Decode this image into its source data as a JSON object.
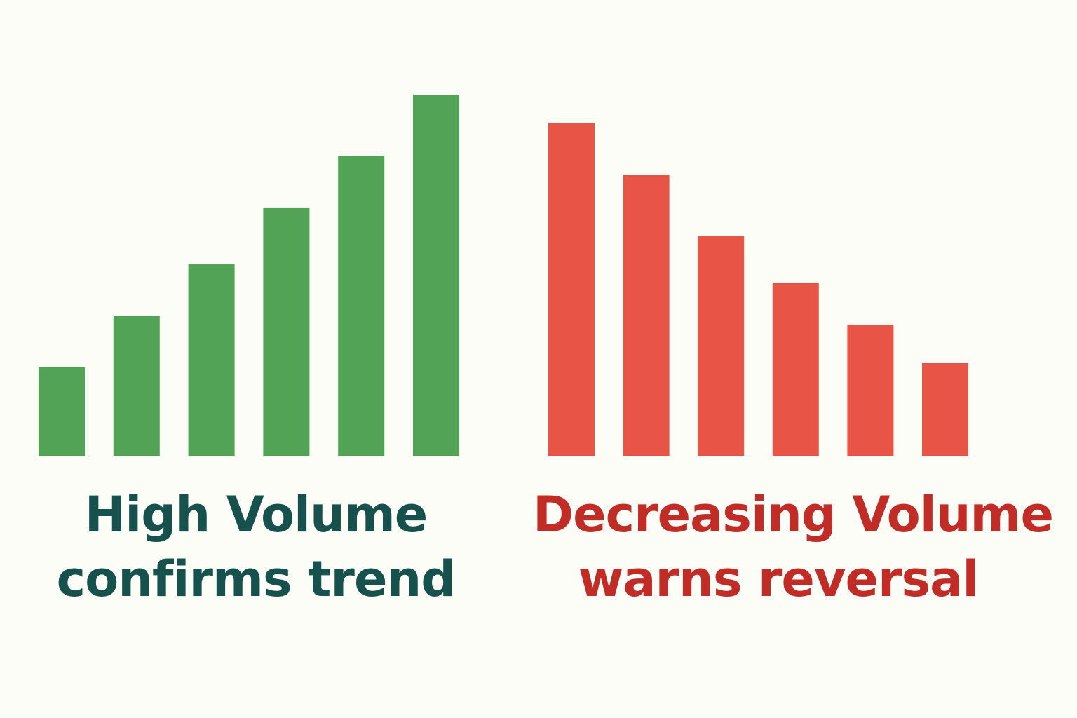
{
  "chart_data": [
    {
      "type": "bar",
      "values": [
        19,
        30,
        41,
        53,
        64,
        77
      ],
      "ylim": [
        0,
        80
      ],
      "grid": false,
      "color": "#52a355",
      "caption": {
        "line1": "High Volume",
        "line2": "confirms trend",
        "color": "#17514d"
      }
    },
    {
      "type": "bar",
      "values": [
        71,
        60,
        47,
        37,
        28,
        20
      ],
      "ylim": [
        0,
        80
      ],
      "grid": false,
      "color": "#e85546",
      "caption": {
        "line1": "Decreasing Volume",
        "line2": "warns reversal",
        "color": "#c22c27"
      }
    }
  ],
  "background": "#fdfdf8"
}
